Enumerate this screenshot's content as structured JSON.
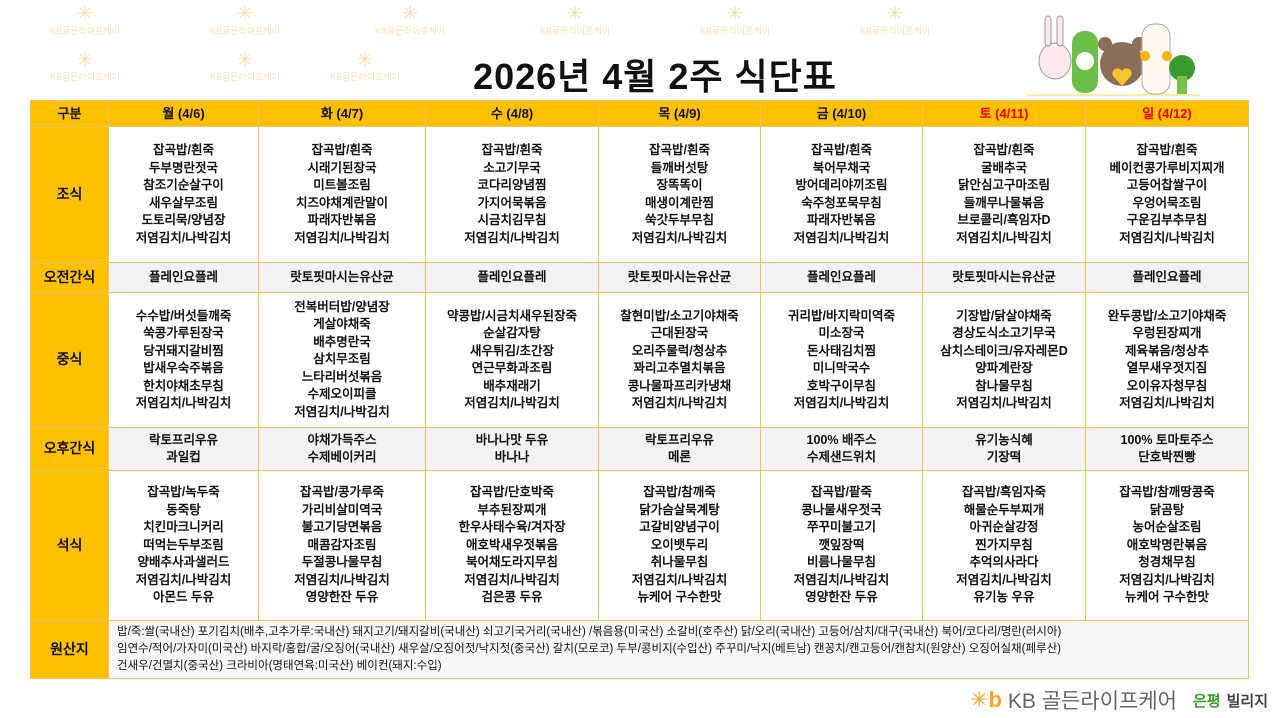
{
  "title": "2026년  4월   2주  식단표",
  "watermark": "KB골든라이프케어",
  "header": [
    "구분",
    "월 (4/6)",
    "화 (4/7)",
    "수 (4/8)",
    "목 (4/9)",
    "금 (4/10)",
    "토 (4/11)",
    "일 (4/12)"
  ],
  "rows": [
    {
      "label": "조식",
      "cells": [
        [
          "잡곡밥/흰죽",
          "두부명란젓국",
          "참조기순살구이",
          "새우살무조림",
          "도토리묵/양념장",
          "저염김치/나박김치"
        ],
        [
          "잡곡밥/흰죽",
          "시래기된장국",
          "미트볼조림",
          "치즈야채계란말이",
          "파래자반볶음",
          "저염김치/나박김치"
        ],
        [
          "잡곡밥/흰죽",
          "소고기무국",
          "코다리양념찜",
          "가지어묵볶음",
          "시금치김무침",
          "저염김치/나박김치"
        ],
        [
          "잡곡밥/흰죽",
          "들깨버섯탕",
          "장똑똑이",
          "매생이계란찜",
          "쑥갓두부무침",
          "저염김치/나박김치"
        ],
        [
          "잡곡밥/흰죽",
          "북어무채국",
          "방어데리야끼조림",
          "숙주청포묵무침",
          "파래자반볶음",
          "저염김치/나박김치"
        ],
        [
          "잡곡밥/흰죽",
          "굴배추국",
          "닭안심고구마조림",
          "들깨무나물볶음",
          "브로콜리/흑임자D",
          "저염김치/나박김치"
        ],
        [
          "잡곡밥/흰죽",
          "베이컨콩가루비지찌개",
          "고등어찹쌀구이",
          "우엉어묵조림",
          "구운김부추무침",
          "저염김치/나박김치"
        ]
      ]
    },
    {
      "label": "오전간식",
      "snack": true,
      "cells": [
        [
          "플레인요플레"
        ],
        [
          "랏토핏마시는유산균"
        ],
        [
          "플레인요플레"
        ],
        [
          "랏토핏마시는유산균"
        ],
        [
          "플레인요플레"
        ],
        [
          "랏토핏마시는유산균"
        ],
        [
          "플레인요플레"
        ]
      ]
    },
    {
      "label": "중식",
      "cells": [
        [
          "수수밥/버섯들깨죽",
          "쑥콩가루된장국",
          "당귀돼지갈비찜",
          "밥새우숙주볶음",
          "한치야채초무침",
          "저염김치/나박김치"
        ],
        [
          "전복버터밥/양념장",
          "게살야채죽",
          "배추명란국",
          "삼치무조림",
          "느타리버섯볶음",
          "수제오이피클",
          "저염김치/나박김치"
        ],
        [
          "약콩밥/시금치새우된장죽",
          "순살감자탕",
          "새우튀김/초간장",
          "연근무화과조림",
          "배추재래기",
          "저염김치/나박김치"
        ],
        [
          "찰현미밥/소고기야채죽",
          "근대된장국",
          "오리주물럭/청상추",
          "꽈리고추멸치볶음",
          "콩나물파프리카냉채",
          "저염김치/나박김치"
        ],
        [
          "귀리밥/바지락미역죽",
          "미소장국",
          "돈사태김치찜",
          "미니막국수",
          "호박구이무침",
          "저염김치/나박김치"
        ],
        [
          "기장밥/닭살야채죽",
          "경상도식소고기무국",
          "삼치스테이크/유자레몬D",
          "양파계란장",
          "참나물무침",
          "저염김치/나박김치"
        ],
        [
          "완두콩밥/소고기야채죽",
          "우렁된장찌개",
          "제육볶음/청상추",
          "열무새우젓지짐",
          "오이유자청무침",
          "저염김치/나박김치"
        ]
      ]
    },
    {
      "label": "오후간식",
      "snack": true,
      "cells": [
        [
          "락토프리우유",
          "과일컵"
        ],
        [
          "야채가득주스",
          "수제베이커리"
        ],
        [
          "바나나맛 두유",
          "바나나"
        ],
        [
          "락토프리우유",
          "메론"
        ],
        [
          "100% 배주스",
          "수제샌드위치"
        ],
        [
          "유기농식혜",
          "기장떡"
        ],
        [
          "100% 토마토주스",
          "단호박찐빵"
        ]
      ]
    },
    {
      "label": "석식",
      "cells": [
        [
          "잡곡밥/녹두죽",
          "동죽탕",
          "치킨마크니커리",
          "떠먹는두부조림",
          "양배추사과샐러드",
          "저염김치/나박김치",
          "아몬드 두유"
        ],
        [
          "잡곡밥/콩가루죽",
          "가리비살미역국",
          "불고기당면볶음",
          "매콤감자조림",
          "두절콩나물무침",
          "저염김치/나박김치",
          "영양한잔 두유"
        ],
        [
          "잡곡밥/단호박죽",
          "부추된장찌개",
          "한우사태수육/겨자장",
          "애호박새우젓볶음",
          "북어채도라지무침",
          "저염김치/나박김치",
          "검은콩 두유"
        ],
        [
          "잡곡밥/참깨죽",
          "닭가슴살묵계탕",
          "고갈비양념구이",
          "오이뱃두리",
          "취나물무침",
          "저염김치/나박김치",
          "뉴케어 구수한맛"
        ],
        [
          "잡곡밥/팥죽",
          "콩나물새우젓국",
          "쭈꾸미불고기",
          "깻잎장떡",
          "비름나물무침",
          "저염김치/나박김치",
          "영양한잔 두유"
        ],
        [
          "잡곡밥/흑임자죽",
          "해물순두부찌개",
          "아귀순살강정",
          "찐가지무침",
          "추억의사라다",
          "저염김치/나박김치",
          "유기농 우유"
        ],
        [
          "잡곡밥/참깨땅콩죽",
          "닭곰탕",
          "농어순살조림",
          "애호박명란볶음",
          "청경채무침",
          "저염김치/나박김치",
          "뉴케어 구수한맛"
        ]
      ]
    }
  ],
  "origin": {
    "label": "원산지",
    "lines": [
      "밥/죽:쌀(국내산)  포기김치(배추,고추가루:국내산)  돼지고기/돼지갈비(국내산)  쇠고기국거리(국내산) /볶음용(미국산)  소갈비(호주산)  닭/오리(국내산)  고등어/삼치/대구(국내산)  북어/코다리/명란(러시아)",
      "임연수/적어/가자미(미국산)  바지락/홍합/굴/오징어(국내산)  새우살/오징어젓/낙지젓(중국산)  갈치(모로코)  두부/콩비지(수입산)  주꾸미/낙지(베트남)  캔꽁치/캔고등어/캔참치(원양산)  오징어실채(페루산)",
      "건새우/건멸치(중국산)  크라비아(명태연육:미국산)  베이컨(돼지:수입)"
    ]
  },
  "footer": {
    "brand": "KB 골든라이프케어",
    "branch": "은평",
    "suffix": "빌리지"
  },
  "colors": {
    "header": "#ffc000",
    "weekend": "#e00000",
    "border": "#e9c56a",
    "snack_bg": "#f2f2f2",
    "branch_green": "#3a9a2e"
  }
}
